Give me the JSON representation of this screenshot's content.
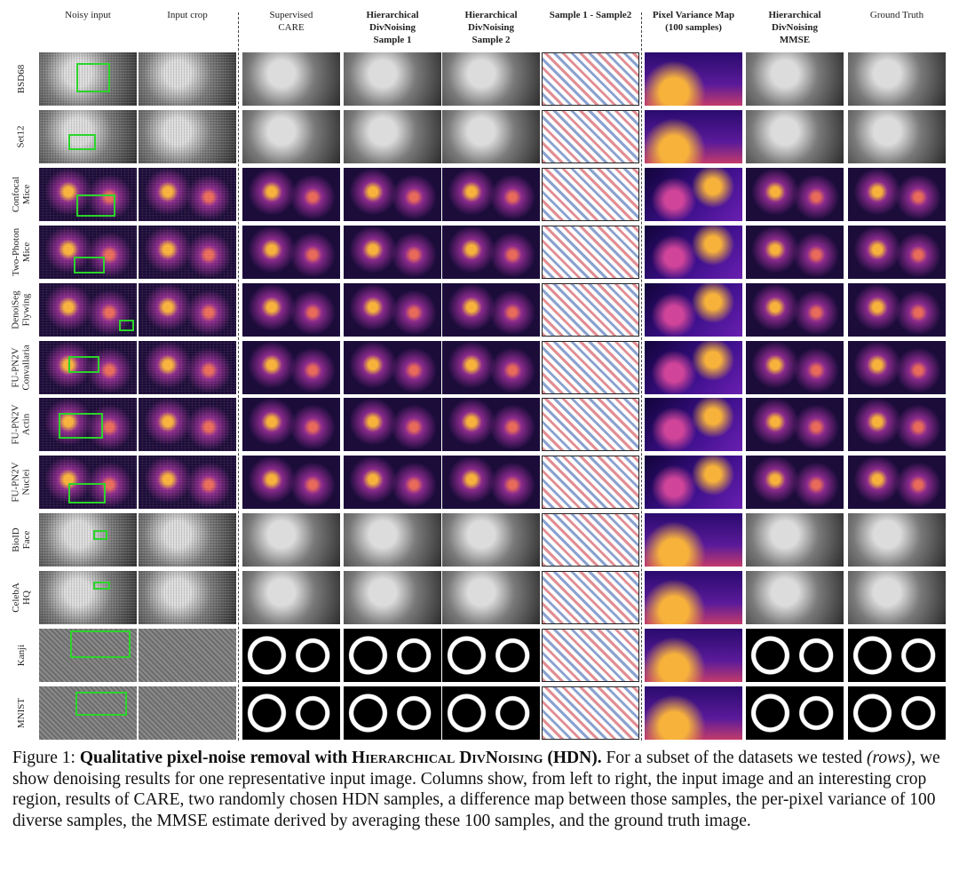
{
  "columns": [
    {
      "key": "noisy",
      "lines": [
        "Noisy input"
      ],
      "bold": false
    },
    {
      "key": "crop",
      "lines": [
        "Input crop"
      ],
      "bold": false
    },
    {
      "key": "care",
      "lines": [
        "Supervised",
        "CARE"
      ],
      "bold": false
    },
    {
      "key": "s1",
      "lines": [
        "Hierarchical",
        "DivNoising",
        "Sample 1"
      ],
      "bold": true
    },
    {
      "key": "s2",
      "lines": [
        "Hierarchical",
        "DivNoising",
        "Sample 2"
      ],
      "bold": true
    },
    {
      "key": "diff",
      "lines": [
        "Sample 1 - Sample2"
      ],
      "bold": true
    },
    {
      "key": "var",
      "lines": [
        "Pixel Variance Map",
        "(100 samples)"
      ],
      "bold": true
    },
    {
      "key": "mmse",
      "lines": [
        "Hierarchical",
        "DivNoising",
        "MMSE"
      ],
      "bold": true
    },
    {
      "key": "gt",
      "lines": [
        "Ground Truth"
      ],
      "bold": false
    }
  ],
  "rows": [
    {
      "lines": [
        "BSD68"
      ],
      "palette": "gray"
    },
    {
      "lines": [
        "Set12"
      ],
      "palette": "gray"
    },
    {
      "lines": [
        "Confocal",
        "Mice"
      ],
      "palette": "magma"
    },
    {
      "lines": [
        "Two-Photon",
        "Mice"
      ],
      "palette": "magma"
    },
    {
      "lines": [
        "DenoiSeg",
        "Flywing"
      ],
      "palette": "magma"
    },
    {
      "lines": [
        "FU-PN2V",
        "Convallaria"
      ],
      "palette": "magma"
    },
    {
      "lines": [
        "FU-PN2V",
        "Actin"
      ],
      "palette": "magma"
    },
    {
      "lines": [
        "FU-PN2V",
        "Nuclei"
      ],
      "palette": "magma"
    },
    {
      "lines": [
        "BioID",
        "Face"
      ],
      "palette": "gray"
    },
    {
      "lines": [
        "CelebA",
        "HQ"
      ],
      "palette": "gray"
    },
    {
      "lines": [
        "Kanji"
      ],
      "palette": "gray"
    },
    {
      "lines": [
        "MNIST"
      ],
      "palette": "gray"
    }
  ],
  "colors": {
    "crop_box": "#2bd42b",
    "magma_bg": "#1b0c3a",
    "magma_mid": "#8a2a8c",
    "magma_hi": "#f7b23b",
    "diff_red": "#c8323a",
    "diff_blue": "#2b55a8"
  },
  "caption": {
    "prefix": "Figure 1: ",
    "bold_lead": "Qualitative pixel-noise removal with ",
    "bold_sc": "Hierarchical DivNoising",
    "bold_tail": " (HDN).",
    "text1": " For a subset of the datasets we tested ",
    "rows_word": "(rows)",
    "text2": ", we show denoising results for one representative input image. Columns show, from left to right, the input image and an interesting crop region, results of CARE, two randomly chosen HDN samples, a difference map between those samples, the per-pixel variance of 100 diverse samples, the MMSE estimate derived by averaging these 100 samples, and the ground truth image."
  }
}
